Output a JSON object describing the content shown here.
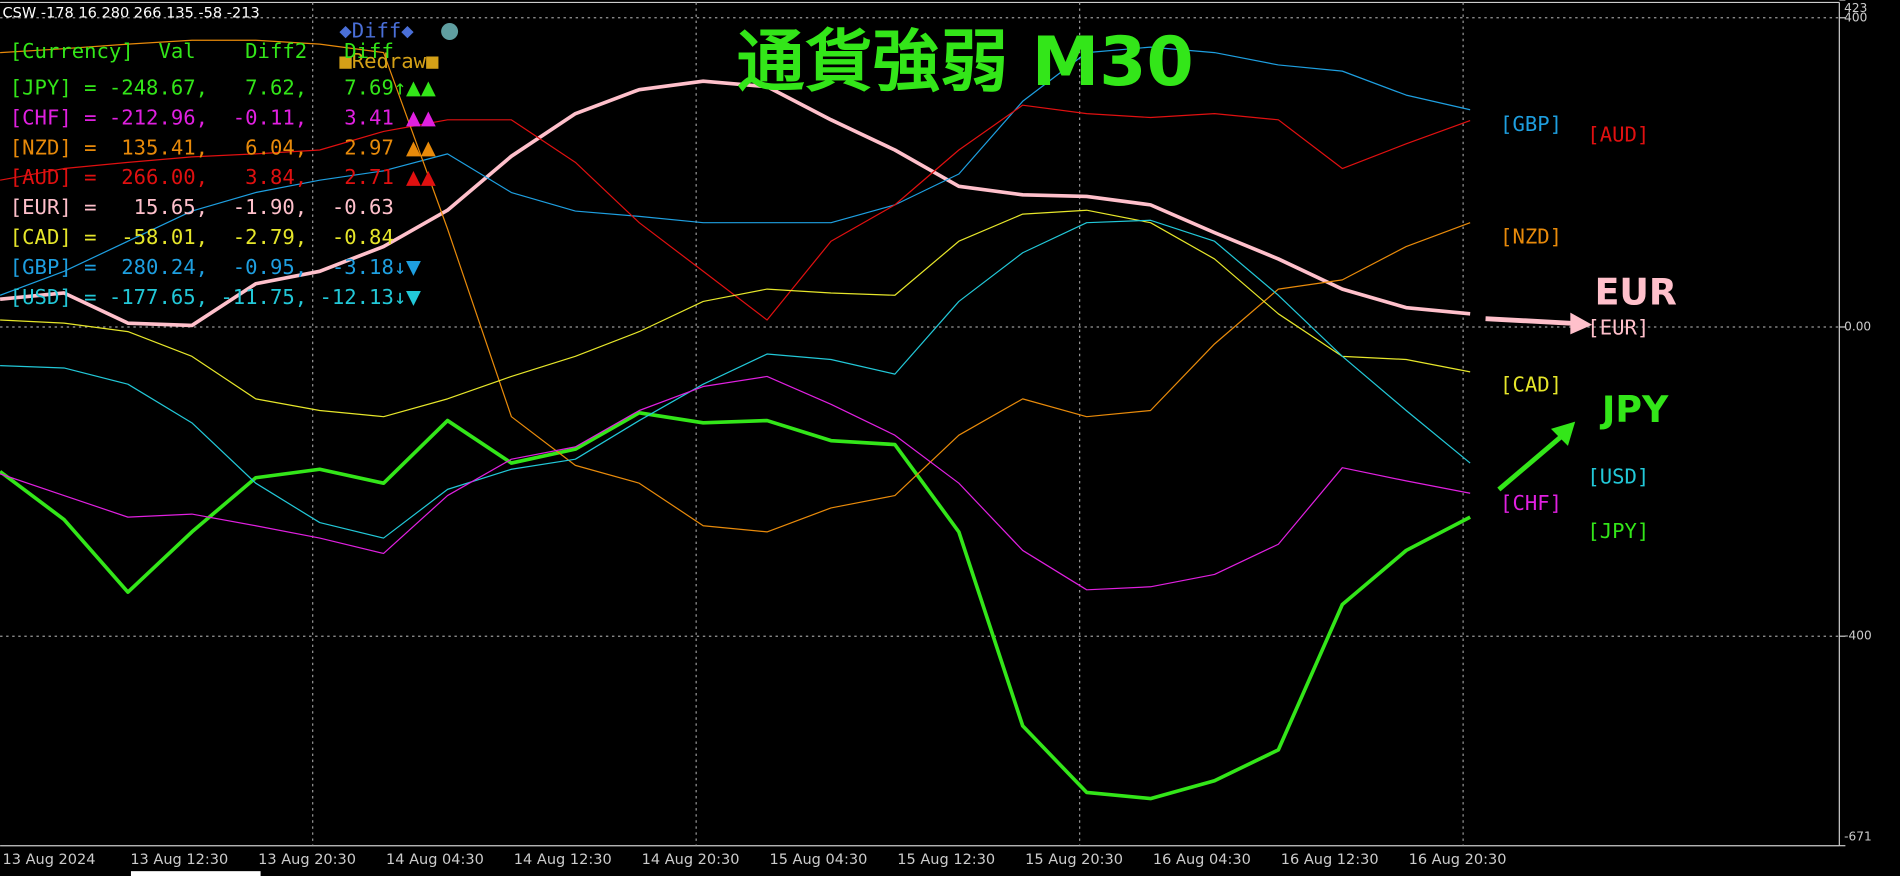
{
  "chart_data": {
    "type": "line",
    "title": "通貨強弱 M30",
    "info": "CSW -178 16 280 266 135 -58 -213",
    "buttons": [
      "◆Diff◆",
      "■Redraw■"
    ],
    "panel": {
      "header": "[Currency]  Val    Diff2   Diff",
      "rows": [
        {
          "text": "[JPY] = -248.67,   7.62,   7.69↑",
          "marks": "▲▲",
          "color": "#33e619"
        },
        {
          "text": "[CHF] = -212.96,  -0.11,   3.41",
          "marks": "▲▲",
          "color": "#e020e0"
        },
        {
          "text": "[NZD] =  135.41,   6.04,   2.97",
          "marks": "▲▲",
          "color": "#e88a0a"
        },
        {
          "text": "[AUD] =  266.00,   3.84,   2.71",
          "marks": "▲▲",
          "color": "#e01010"
        },
        {
          "text": "[EUR] =   15.65,  -1.90,  -0.63",
          "marks": "",
          "color": "#ffc0cb"
        },
        {
          "text": "[CAD] =  -58.01,  -2.79,  -0.84",
          "marks": "",
          "color": "#e6e62a"
        },
        {
          "text": "[GBP] =  280.24,  -0.95,  -3.18↓",
          "marks": "▼",
          "color": "#1e9fe0"
        },
        {
          "text": "[USD] = -177.65, -11.75, -12.13↓",
          "marks": "▼",
          "color": "#22c8d8"
        }
      ]
    },
    "annotations": [
      {
        "text": "EUR",
        "color": "#ffc0cb"
      },
      {
        "text": "JPY",
        "color": "#33e619"
      }
    ],
    "categories": [
      "13 Aug 2024",
      null,
      "13 Aug 12:30",
      null,
      "13 Aug 20:30",
      null,
      "14 Aug 04:30",
      null,
      "14 Aug 12:30",
      null,
      "14 Aug 20:30",
      null,
      "15 Aug 04:30",
      null,
      "15 Aug 12:30",
      null,
      "15 Aug 20:30",
      null,
      "16 Aug 04:30",
      null,
      "16 Aug 12:30",
      null,
      "16 Aug 20:30",
      null
    ],
    "ylim": [
      -671,
      423
    ],
    "yticks": [
      423,
      400,
      {
        "value": 0,
        "label": "0.00"
      },
      -400,
      -671
    ],
    "grid": true,
    "series": [
      {
        "name": "[JPY]",
        "color": "#33e619",
        "values": [
          -187,
          -249,
          -343,
          -265,
          -195,
          -184,
          -202,
          -121,
          -176,
          -158,
          -111,
          -124,
          -121,
          -147,
          -152,
          -265,
          -516,
          -602,
          -610,
          -587,
          -547,
          -359,
          -289,
          -246
        ]
      },
      {
        "name": "[EUR]",
        "color": "#ffc0cb",
        "values": [
          36,
          44,
          5,
          2,
          56,
          72,
          104,
          151,
          221,
          276,
          307,
          318,
          311,
          268,
          229,
          182,
          171,
          169,
          158,
          122,
          88,
          49,
          25,
          17
        ]
      },
      {
        "name": "[GBP]",
        "color": "#1e9fe0",
        "values": [
          41,
          72,
          111,
          150,
          174,
          190,
          202,
          224,
          174,
          150,
          143,
          135,
          135,
          135,
          158,
          198,
          292,
          355,
          362,
          355,
          339,
          331,
          300,
          281
        ]
      },
      {
        "name": "[AUD]",
        "color": "#e01010",
        "values": [
          190,
          205,
          213,
          220,
          224,
          229,
          253,
          268,
          268,
          213,
          135,
          72,
          9,
          111,
          158,
          229,
          287,
          276,
          271,
          276,
          268,
          205,
          237,
          267
        ]
      },
      {
        "name": "[NZD]",
        "color": "#e88a0a",
        "values": [
          355,
          360,
          366,
          371,
          371,
          366,
          355,
          127,
          -116,
          -179,
          -202,
          -257,
          -265,
          -234,
          -218,
          -140,
          -93,
          -116,
          -108,
          -22,
          49,
          61,
          104,
          135
        ]
      },
      {
        "name": "[CAD]",
        "color": "#e6e62a",
        "values": [
          9,
          5,
          -6,
          -38,
          -93,
          -108,
          -116,
          -93,
          -64,
          -38,
          -6,
          33,
          49,
          44,
          41,
          111,
          146,
          151,
          135,
          88,
          17,
          -38,
          -42,
          -58
        ]
      },
      {
        "name": "[USD]",
        "color": "#22c8d8",
        "values": [
          -50,
          -53,
          -74,
          -124,
          -202,
          -253,
          -273,
          -210,
          -184,
          -171,
          -121,
          -74,
          -35,
          -42,
          -61,
          33,
          96,
          135,
          138,
          111,
          41,
          -38,
          -108,
          -176
        ]
      },
      {
        "name": "[CHF]",
        "color": "#e020e0",
        "values": [
          -190,
          -218,
          -246,
          -242,
          -257,
          -273,
          -293,
          -218,
          -171,
          -155,
          -108,
          -77,
          -64,
          -100,
          -140,
          -202,
          -289,
          -340,
          -336,
          -320,
          -281,
          -182,
          -199,
          -215
        ]
      }
    ]
  }
}
